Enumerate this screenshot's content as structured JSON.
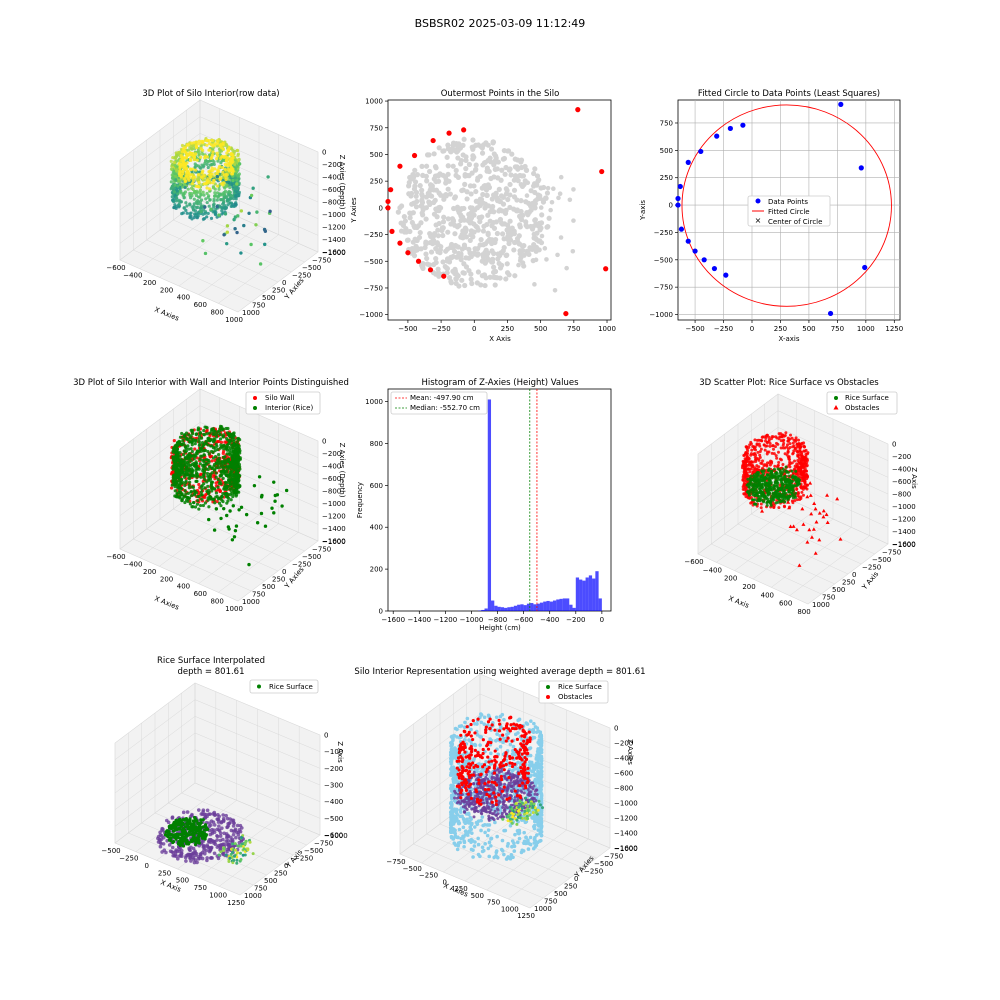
{
  "figure": {
    "suptitle": "BSBSR02 2025-03-09 11:12:49"
  },
  "colors": {
    "wall": "#ff0000",
    "interior": "#008000",
    "data_points": "#0000ff",
    "hull_points": "#d3d3d3",
    "hist_bars": "#0000ff",
    "cylinder": "#87ceeb",
    "surface": "#6a3d9a",
    "viridis_hi": "#fde725",
    "viridis_mid": "#21918c"
  },
  "chart_data": [
    {
      "id": "p1",
      "type": "scatter3d",
      "title": "3D Plot of Silo Interior(row data)",
      "xlabel": "X Axies",
      "ylabel": "Y Axies",
      "zlabel": "Z Axies (Depth)",
      "x_ticks": [
        "-600",
        "-400",
        "-200",
        "0",
        "200",
        "400",
        "600",
        "800",
        "1000"
      ],
      "x_tick_display": [
        "−600",
        "−400",
        "200",
        "200",
        "400",
        "600",
        "800",
        "1000"
      ],
      "y_ticks": [
        "−1000",
        "−750",
        "−500",
        "−250",
        "0",
        "250",
        "500",
        "750",
        "1000"
      ],
      "z_ticks": [
        "0",
        "−200",
        "−400",
        "−600",
        "−800",
        "−1000",
        "−1200",
        "−1400",
        "−1600"
      ],
      "xlim": [
        -600,
        1000
      ],
      "ylim": [
        -1000,
        1000
      ],
      "zlim": [
        -1600,
        0
      ],
      "colormap": "viridis"
    },
    {
      "id": "p2",
      "type": "scatter",
      "title": "Outermost Points in the Silo",
      "xlabel": "X Axis",
      "ylabel": "Y Axies",
      "xlim": [
        -650,
        1030
      ],
      "ylim": [
        -1050,
        1010
      ],
      "x_ticks": [
        -500,
        -250,
        0,
        250,
        500,
        750,
        1000
      ],
      "y_ticks": [
        -1000,
        -750,
        -500,
        -250,
        0,
        250,
        500,
        750,
        1000
      ],
      "outermost_points": [
        [
          780,
          920
        ],
        [
          960,
          340
        ],
        [
          990,
          -570
        ],
        [
          690,
          -990
        ],
        [
          -80,
          730
        ],
        [
          -190,
          700
        ],
        [
          -310,
          630
        ],
        [
          -450,
          490
        ],
        [
          -560,
          390
        ],
        [
          -630,
          170
        ],
        [
          -650,
          60
        ],
        [
          -650,
          0
        ],
        [
          -620,
          -220
        ],
        [
          -560,
          -330
        ],
        [
          -500,
          -420
        ],
        [
          -420,
          -500
        ],
        [
          -330,
          -580
        ],
        [
          -230,
          -640
        ]
      ],
      "grey_cloud": {
        "center": [
          0,
          -50
        ],
        "radius": 500
      }
    },
    {
      "id": "p3",
      "type": "scatter+circle",
      "title": "Fitted Circle to Data Points (Least Squares)",
      "xlabel": "X-axis",
      "ylabel": "Y-axis",
      "xlim": [
        -650,
        1300
      ],
      "ylim": [
        -1050,
        960
      ],
      "x_ticks": [
        -500,
        -250,
        0,
        250,
        500,
        750,
        1000,
        1250
      ],
      "y_ticks": [
        -1000,
        -750,
        -500,
        -250,
        0,
        250,
        500,
        750
      ],
      "legend": [
        "Data Points",
        "Fitted Circle",
        "Center of Circle"
      ],
      "data_points": [
        [
          780,
          920
        ],
        [
          960,
          340
        ],
        [
          990,
          -570
        ],
        [
          690,
          -990
        ],
        [
          -80,
          730
        ],
        [
          -190,
          700
        ],
        [
          -310,
          630
        ],
        [
          -450,
          490
        ],
        [
          -560,
          390
        ],
        [
          -630,
          170
        ],
        [
          -650,
          60
        ],
        [
          -650,
          0
        ],
        [
          -620,
          -220
        ],
        [
          -560,
          -330
        ],
        [
          -500,
          -420
        ],
        [
          -420,
          -500
        ],
        [
          -330,
          -580
        ],
        [
          -230,
          -640
        ]
      ],
      "circle": {
        "cx": 305,
        "cy": -5,
        "r": 920
      }
    },
    {
      "id": "p4",
      "type": "scatter3d",
      "title": "3D Plot of Silo Interior with Wall and Interior Points Distinguished",
      "xlabel": "X Axies",
      "ylabel": "Y Axies",
      "zlabel": "Z Axies (Depth)",
      "legend": [
        "Silo Wall",
        "Interior (Rice)"
      ],
      "x_tick_display": [
        "−600",
        "−400",
        "200",
        "200",
        "400",
        "600",
        "800",
        "1000"
      ],
      "y_ticks": [
        "−1000",
        "−750",
        "−500",
        "−250",
        "0",
        "250",
        "500",
        "750",
        "1000"
      ],
      "z_ticks": [
        "0",
        "−200",
        "−400",
        "−600",
        "−800",
        "−1000",
        "−1200",
        "−1400",
        "−1600"
      ]
    },
    {
      "id": "p5",
      "type": "bar",
      "title": "Histogram of Z-Axies (Height) Values",
      "xlabel": "Height (cm)",
      "ylabel": "Frequency",
      "xlim": [
        -1640,
        70
      ],
      "ylim": [
        0,
        1060
      ],
      "x_ticks": [
        -1600,
        -1400,
        -1200,
        -1000,
        -800,
        -600,
        -400,
        -200,
        0
      ],
      "y_ticks": [
        0,
        200,
        400,
        600,
        800,
        1000
      ],
      "bin_width": 25,
      "bins": [
        [
          -950,
          2
        ],
        [
          -925,
          5
        ],
        [
          -900,
          12
        ],
        [
          -875,
          1010
        ],
        [
          -850,
          50
        ],
        [
          -825,
          25
        ],
        [
          -800,
          20
        ],
        [
          -775,
          18
        ],
        [
          -750,
          15
        ],
        [
          -725,
          18
        ],
        [
          -700,
          20
        ],
        [
          -675,
          25
        ],
        [
          -650,
          30
        ],
        [
          -625,
          32
        ],
        [
          -600,
          28
        ],
        [
          -575,
          35
        ],
        [
          -550,
          38
        ],
        [
          -525,
          32
        ],
        [
          -500,
          35
        ],
        [
          -475,
          40
        ],
        [
          -450,
          45
        ],
        [
          -425,
          48
        ],
        [
          -400,
          45
        ],
        [
          -375,
          50
        ],
        [
          -350,
          55
        ],
        [
          -325,
          58
        ],
        [
          -300,
          60
        ],
        [
          -275,
          60
        ],
        [
          -250,
          30
        ],
        [
          -225,
          15
        ],
        [
          -200,
          160
        ],
        [
          -175,
          150
        ],
        [
          -150,
          145
        ],
        [
          -125,
          160
        ],
        [
          -100,
          170
        ],
        [
          -75,
          155
        ],
        [
          -50,
          190
        ],
        [
          -25,
          60
        ]
      ],
      "mean": -497.9,
      "median": -552.7,
      "legend": [
        "Mean: -497.90 cm",
        "Median: -552.70 cm"
      ]
    },
    {
      "id": "p6",
      "type": "scatter3d",
      "title": "3D Scatter Plot: Rice Surface vs Obstacles",
      "xlabel": "X Axis",
      "ylabel": "Y Axis",
      "zlabel": "Z Axis",
      "legend": [
        "Rice Surface",
        "Obstacles"
      ],
      "x_tick_display": [
        "−600",
        "−400",
        "200",
        "200",
        "400",
        "600",
        "800"
      ],
      "y_ticks": [
        "−1000",
        "−750",
        "−500",
        "−250",
        "0",
        "250",
        "500",
        "750",
        "1000"
      ],
      "z_ticks": [
        "0",
        "−200",
        "−400",
        "−600",
        "−800",
        "−1000",
        "−1200",
        "−1400",
        "−1600"
      ]
    },
    {
      "id": "p7",
      "type": "surface3d",
      "title_lines": [
        "Rice Surface Interpolated",
        "depth = 801.61"
      ],
      "xlabel": "X Axis",
      "ylabel": "Y Axis",
      "zlabel": "Z Axis",
      "legend": [
        "Rice Surface"
      ],
      "x_ticks": [
        "−500",
        "−250",
        "0",
        "250",
        "500",
        "750",
        "1000",
        "1250"
      ],
      "y_ticks": [
        "−1000",
        "−750",
        "−500",
        "−250",
        "0",
        "250",
        "500",
        "750",
        "1000"
      ],
      "z_ticks": [
        "0",
        "−100",
        "−200",
        "−300",
        "−400",
        "−500",
        "−600"
      ]
    },
    {
      "id": "p8",
      "type": "surface3d",
      "title": "Silo Interior Representation using weighted average depth = 801.61",
      "xlabel": "X Axies",
      "ylabel": "Y Axies",
      "zlabel": "Z Axies",
      "legend": [
        "Rice Surface",
        "Obstacles"
      ],
      "x_ticks": [
        "−750",
        "−500",
        "−250",
        "0",
        "250",
        "500",
        "750",
        "1000",
        "1250"
      ],
      "y_ticks": [
        "−1000",
        "−750",
        "−500",
        "−250",
        "0",
        "250",
        "500",
        "750",
        "1000"
      ],
      "z_ticks": [
        "0",
        "−200",
        "−400",
        "−600",
        "−800",
        "−1000",
        "−1200",
        "−1400",
        "−1600"
      ]
    }
  ]
}
